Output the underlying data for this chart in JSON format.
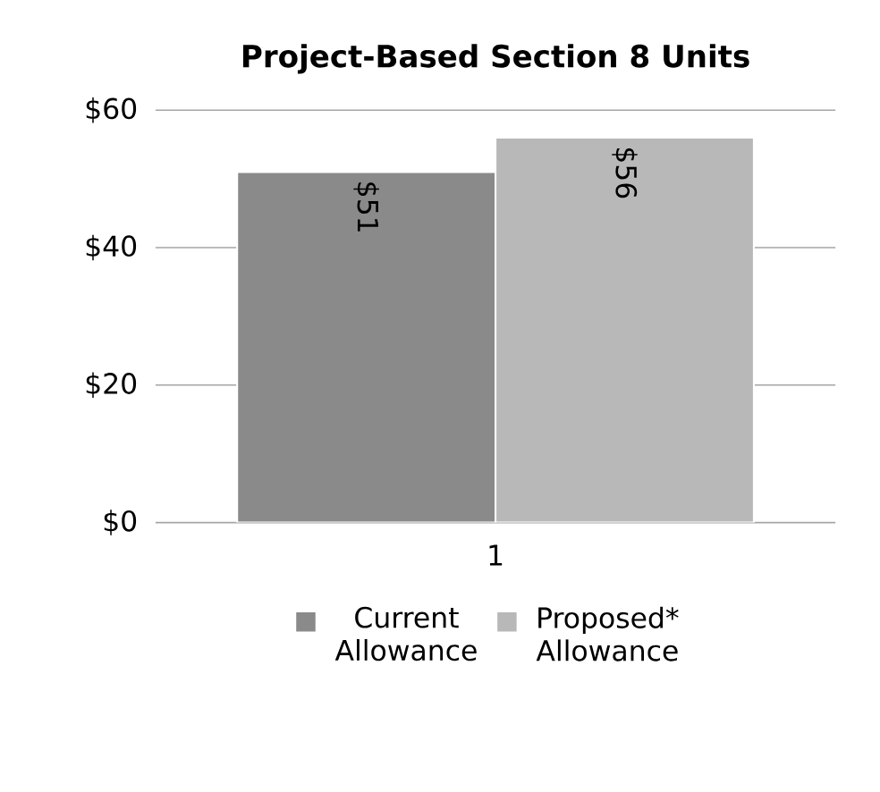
{
  "chart_data": {
    "type": "bar",
    "title": "Project-Based Section 8 Units",
    "categories": [
      "1"
    ],
    "series": [
      {
        "name": "Current Allowance",
        "color": "#8a8a8a",
        "values": [
          51
        ],
        "value_labels": [
          "$51"
        ]
      },
      {
        "name": "Proposed* Allowance",
        "color": "#b8b8b8",
        "values": [
          56
        ],
        "value_labels": [
          "$56"
        ]
      }
    ],
    "ylim": [
      0,
      60
    ],
    "yticks": [
      {
        "value": 0,
        "label": "$0"
      },
      {
        "value": 20,
        "label": "$20"
      },
      {
        "value": 40,
        "label": "$40"
      },
      {
        "value": 60,
        "label": "$60"
      }
    ],
    "grid": "y",
    "legend": "bottom"
  }
}
